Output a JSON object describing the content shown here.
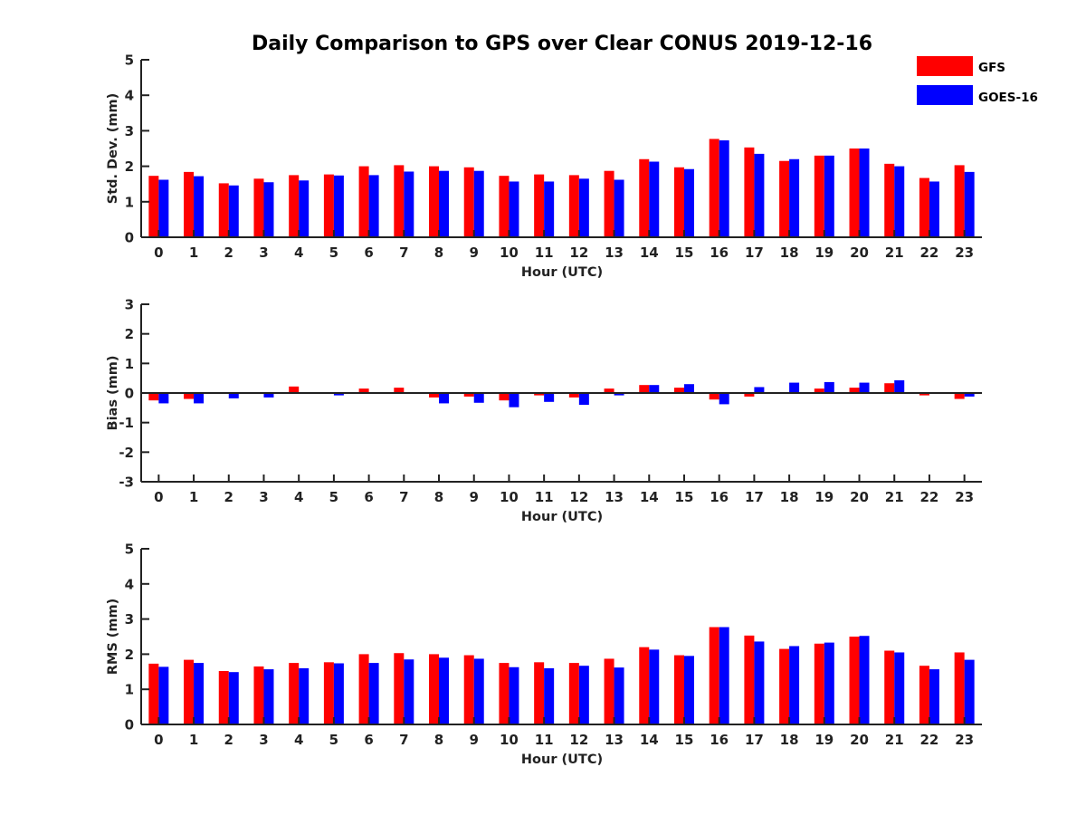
{
  "chart_data": {
    "title": "Daily Comparison to GPS over Clear CONUS 2019-12-16",
    "type": "bar",
    "categories": [
      "0",
      "1",
      "2",
      "3",
      "4",
      "5",
      "6",
      "7",
      "8",
      "9",
      "10",
      "11",
      "12",
      "13",
      "14",
      "15",
      "16",
      "17",
      "18",
      "19",
      "20",
      "21",
      "22",
      "23"
    ],
    "legend": {
      "position": "top-right",
      "entries": [
        {
          "name": "GFS",
          "color": "#ff0000"
        },
        {
          "name": "GOES-16",
          "color": "#0000ff"
        }
      ]
    },
    "panels": [
      {
        "id": "std",
        "xlabel": "Hour (UTC)",
        "ylabel": "Std. Dev. (mm)",
        "ylim": [
          0,
          5
        ],
        "yticks": [
          "0",
          "1",
          "2",
          "3",
          "4",
          "5"
        ],
        "series": [
          {
            "name": "GFS",
            "color": "#ff0000",
            "values": [
              1.73,
              1.84,
              1.52,
              1.65,
              1.75,
              1.77,
              2.0,
              2.03,
              2.0,
              1.97,
              1.73,
              1.77,
              1.75,
              1.87,
              2.2,
              1.97,
              2.77,
              2.53,
              2.15,
              2.3,
              2.5,
              2.07,
              1.67,
              2.03
            ]
          },
          {
            "name": "GOES-16",
            "color": "#0000ff",
            "values": [
              1.62,
              1.72,
              1.46,
              1.55,
              1.6,
              1.74,
              1.75,
              1.85,
              1.87,
              1.87,
              1.57,
              1.57,
              1.65,
              1.62,
              2.13,
              1.92,
              2.73,
              2.35,
              2.2,
              2.3,
              2.5,
              2.0,
              1.57,
              1.84
            ]
          }
        ]
      },
      {
        "id": "bias",
        "xlabel": "Hour (UTC)",
        "ylabel": "Bias (mm)",
        "ylim": [
          -3,
          3
        ],
        "yticks": [
          "-3",
          "-2",
          "-1",
          "0",
          "1",
          "2",
          "3"
        ],
        "series": [
          {
            "name": "GFS",
            "color": "#ff0000",
            "values": [
              -0.25,
              -0.2,
              -0.03,
              0.0,
              0.22,
              0.03,
              0.15,
              0.18,
              -0.15,
              -0.12,
              -0.25,
              -0.08,
              -0.15,
              0.15,
              0.27,
              0.18,
              -0.22,
              -0.12,
              -0.03,
              0.15,
              0.18,
              0.33,
              -0.08,
              -0.2
            ]
          },
          {
            "name": "GOES-16",
            "color": "#0000ff",
            "values": [
              -0.35,
              -0.35,
              -0.18,
              -0.15,
              0.03,
              -0.08,
              0.0,
              0.0,
              -0.35,
              -0.33,
              -0.48,
              -0.3,
              -0.4,
              -0.08,
              0.27,
              0.3,
              -0.38,
              0.2,
              0.35,
              0.37,
              0.35,
              0.43,
              -0.03,
              -0.12
            ]
          }
        ]
      },
      {
        "id": "rms",
        "xlabel": "Hour (UTC)",
        "ylabel": "RMS (mm)",
        "ylim": [
          0,
          5
        ],
        "yticks": [
          "0",
          "1",
          "2",
          "3",
          "4",
          "5"
        ],
        "series": [
          {
            "name": "GFS",
            "color": "#ff0000",
            "values": [
              1.73,
              1.84,
              1.52,
              1.65,
              1.75,
              1.77,
              2.0,
              2.03,
              2.0,
              1.97,
              1.75,
              1.77,
              1.75,
              1.87,
              2.2,
              1.97,
              2.77,
              2.53,
              2.15,
              2.3,
              2.5,
              2.1,
              1.67,
              2.05
            ]
          },
          {
            "name": "GOES-16",
            "color": "#0000ff",
            "values": [
              1.64,
              1.75,
              1.49,
              1.57,
              1.6,
              1.74,
              1.75,
              1.85,
              1.9,
              1.87,
              1.63,
              1.6,
              1.67,
              1.62,
              2.13,
              1.95,
              2.77,
              2.36,
              2.23,
              2.33,
              2.52,
              2.05,
              1.57,
              1.84
            ]
          }
        ]
      }
    ]
  }
}
